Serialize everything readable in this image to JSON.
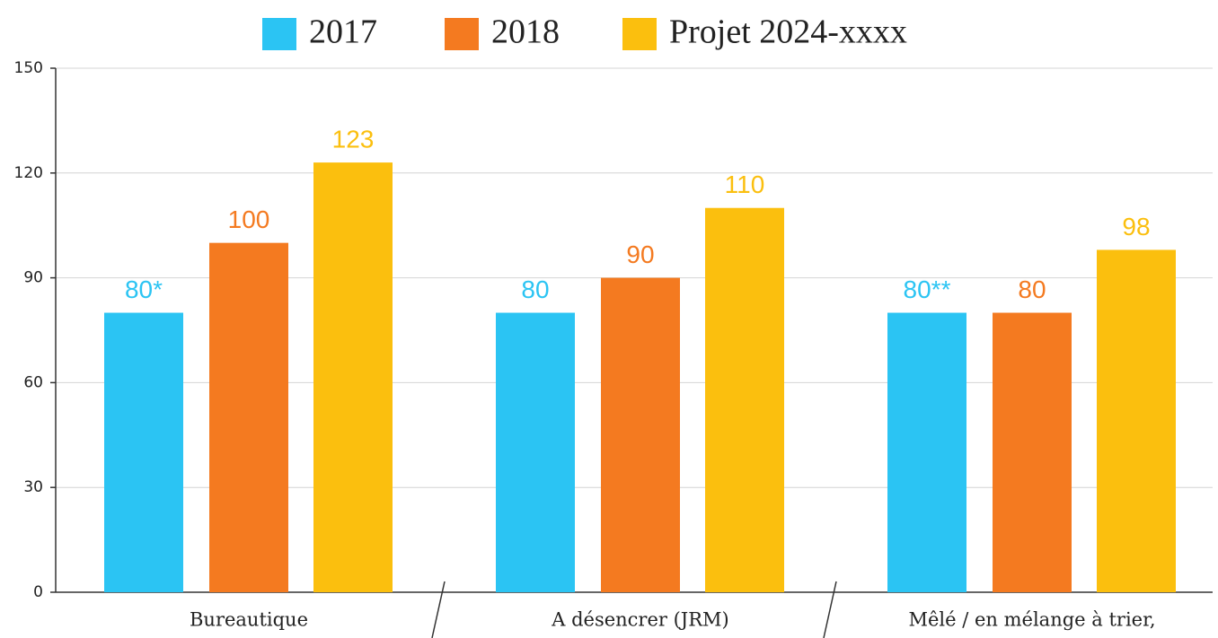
{
  "chart_data": {
    "type": "bar",
    "categories": [
      "Bureautique",
      "A désencrer (JRM)",
      "Mêlé / en mélange à trier,"
    ],
    "series": [
      {
        "name": "2017",
        "color": "#2bc4f3",
        "values": [
          80,
          80,
          80
        ],
        "value_labels": [
          "80*",
          "80",
          "80**"
        ]
      },
      {
        "name": "2018",
        "color": "#f47a20",
        "values": [
          100,
          90,
          80
        ]
      },
      {
        "name": "Projet 2024-xxxx",
        "color": "#fbbf0e",
        "values": [
          123,
          110,
          98
        ]
      }
    ],
    "ylim": [
      0,
      150
    ],
    "yticks": [
      0,
      30,
      60,
      90,
      120,
      150
    ],
    "grid": true
  }
}
